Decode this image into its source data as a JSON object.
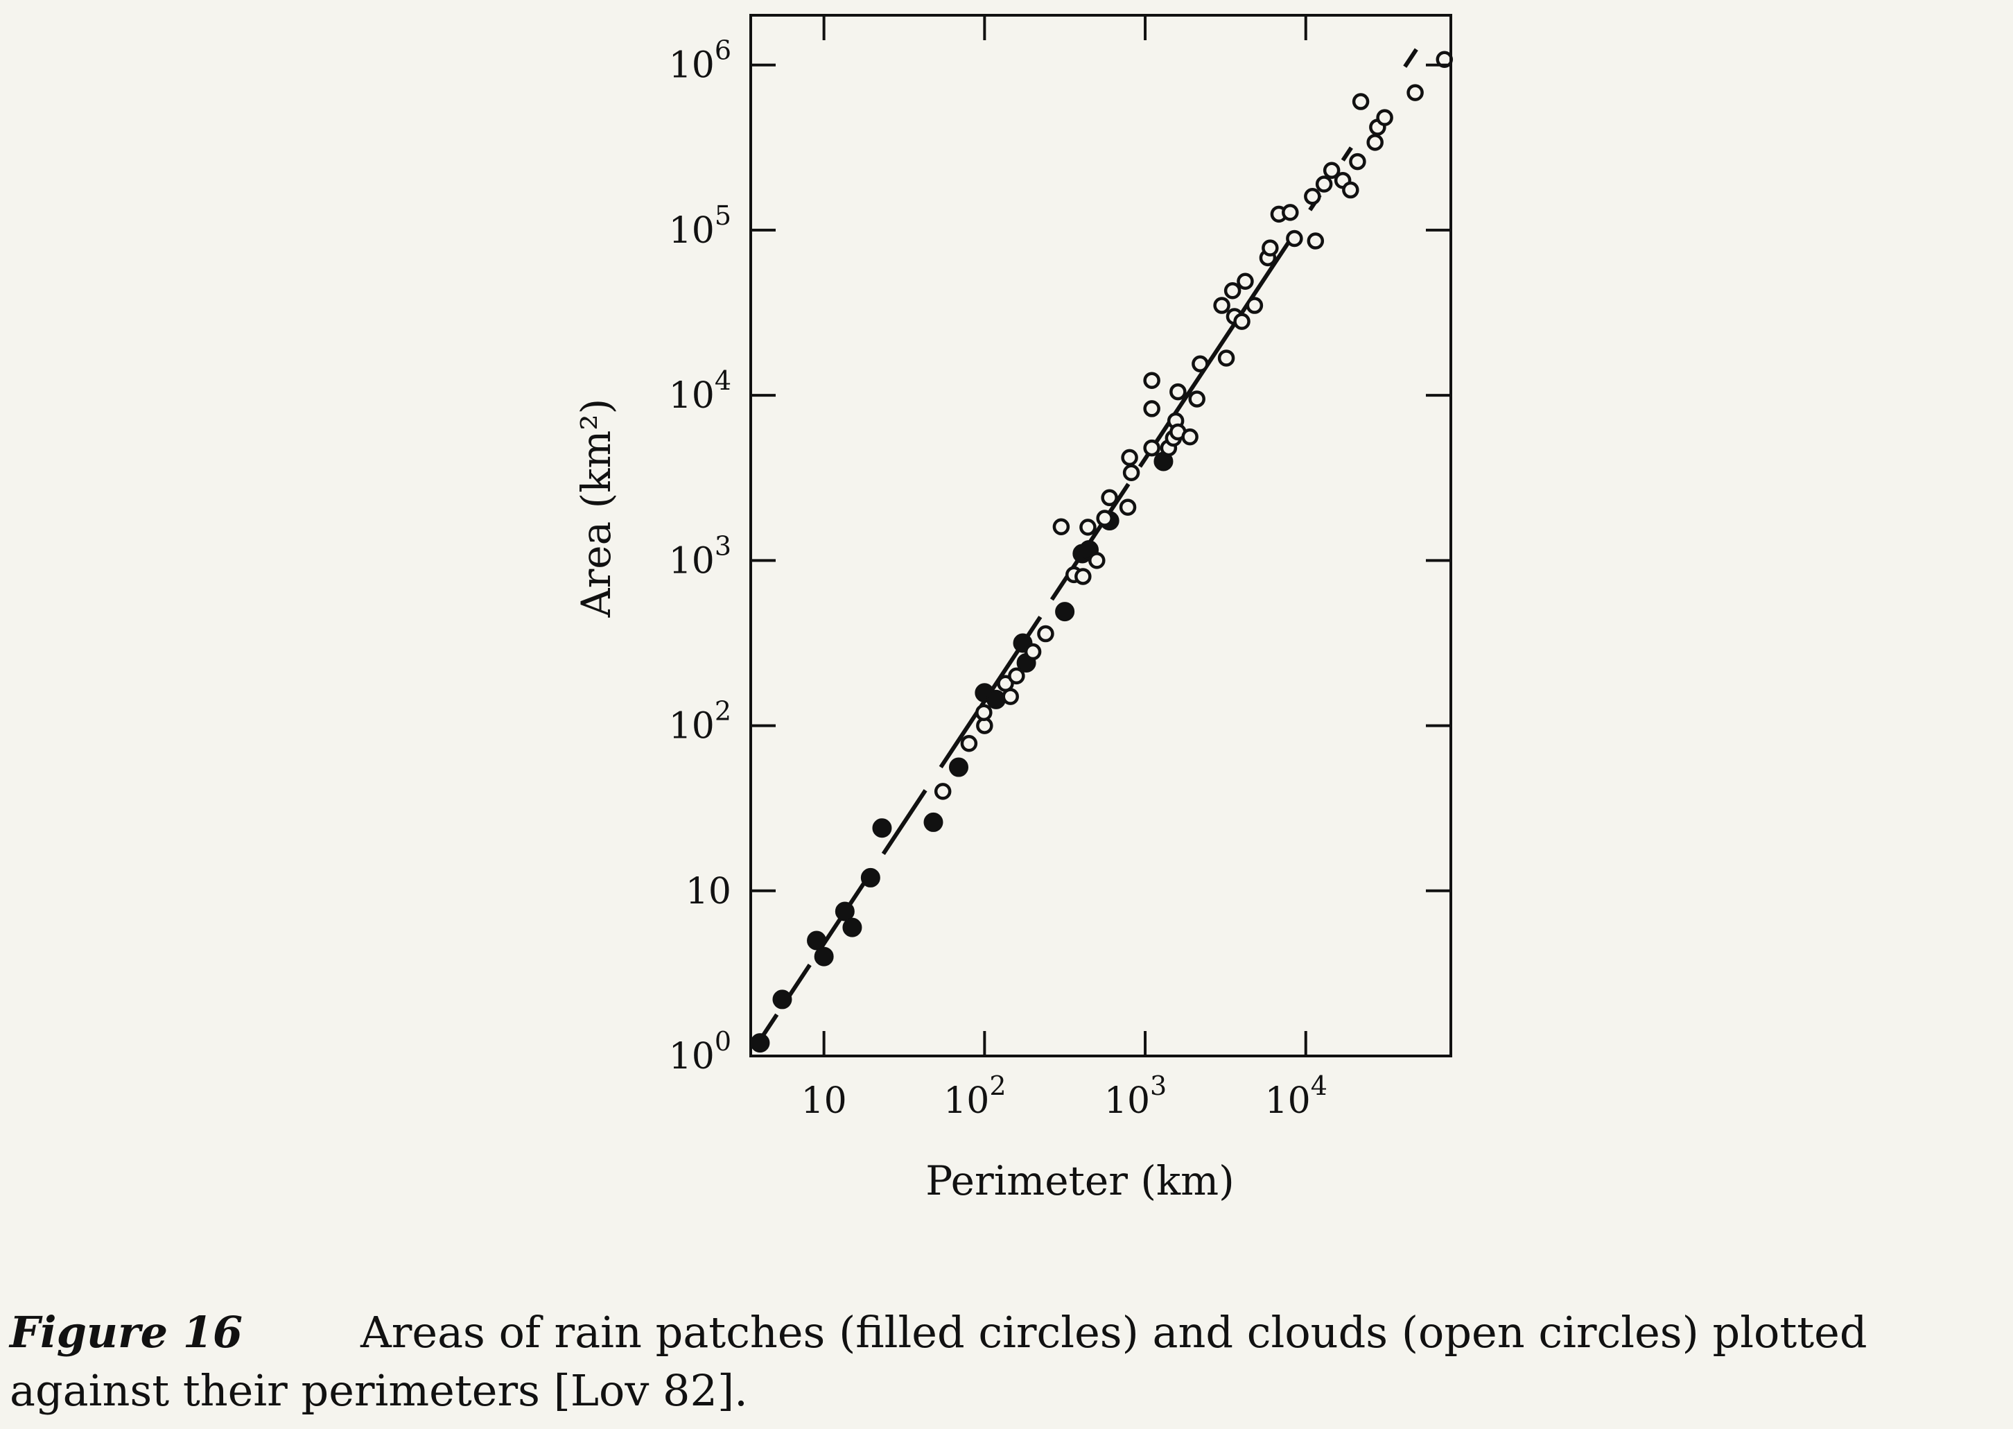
{
  "chart_data": {
    "type": "scatter",
    "xlabel": "Perimeter (km)",
    "ylabel": "Area (km²)",
    "x_scale": "log",
    "y_scale": "log",
    "xlim": [
      3.5,
      80000
    ],
    "ylim": [
      1,
      2000000
    ],
    "x_ticks": [
      {
        "value": 10,
        "label": "10"
      },
      {
        "value": 100,
        "label": "10",
        "exp": "2"
      },
      {
        "value": 1000,
        "label": "10",
        "exp": "3"
      },
      {
        "value": 10000,
        "label": "10",
        "exp": "4"
      }
    ],
    "y_ticks": [
      {
        "value": 1,
        "label": "10",
        "exp": "0"
      },
      {
        "value": 10,
        "label": "10"
      },
      {
        "value": 100,
        "label": "10",
        "exp": "2"
      },
      {
        "value": 1000,
        "label": "10",
        "exp": "3"
      },
      {
        "value": 10000,
        "label": "10",
        "exp": "4"
      },
      {
        "value": 100000,
        "label": "10",
        "exp": "5"
      },
      {
        "value": 1000000,
        "label": "10",
        "exp": "6"
      }
    ],
    "grid": false,
    "series": [
      {
        "marker": "filled-circle",
        "points": [
          [
            4,
            1.2
          ],
          [
            5.5,
            2.2
          ],
          [
            9,
            5
          ],
          [
            10,
            4
          ],
          [
            13.5,
            7.5
          ],
          [
            15,
            6
          ],
          [
            19.5,
            12
          ],
          [
            23,
            24
          ],
          [
            48,
            26
          ],
          [
            69,
            56
          ],
          [
            100,
            158
          ],
          [
            118,
            144
          ],
          [
            173,
            316
          ],
          [
            182,
            240
          ],
          [
            316,
            490
          ],
          [
            406,
            1100
          ],
          [
            447,
            1160
          ],
          [
            600,
            1740
          ],
          [
            1300,
            3980
          ]
        ]
      },
      {
        "marker": "open-circle",
        "points": [
          [
            55,
            40
          ],
          [
            80,
            78
          ],
          [
            100,
            100
          ],
          [
            99,
            120
          ],
          [
            135,
            180
          ],
          [
            145,
            150
          ],
          [
            158,
            200
          ],
          [
            200,
            280
          ],
          [
            240,
            360
          ],
          [
            300,
            1600
          ],
          [
            360,
            820
          ],
          [
            410,
            800
          ],
          [
            440,
            1590
          ],
          [
            500,
            1000
          ],
          [
            560,
            1800
          ],
          [
            600,
            2400
          ],
          [
            780,
            2100
          ],
          [
            800,
            4200
          ],
          [
            820,
            3400
          ],
          [
            1100,
            4800
          ],
          [
            1100,
            8300
          ],
          [
            1100,
            12300
          ],
          [
            1400,
            4800
          ],
          [
            1500,
            5500
          ],
          [
            1550,
            7000
          ],
          [
            1600,
            6000
          ],
          [
            1600,
            10500
          ],
          [
            1900,
            5600
          ],
          [
            2100,
            9500
          ],
          [
            2200,
            15500
          ],
          [
            3000,
            35000
          ],
          [
            3200,
            16800
          ],
          [
            3500,
            43000
          ],
          [
            3600,
            30000
          ],
          [
            4000,
            28000
          ],
          [
            4200,
            49000
          ],
          [
            4800,
            35000
          ],
          [
            5800,
            68000
          ],
          [
            6000,
            78000
          ],
          [
            6800,
            125000
          ],
          [
            8000,
            128000
          ],
          [
            8500,
            89000
          ],
          [
            11000,
            160000
          ],
          [
            11500,
            86000
          ],
          [
            13000,
            190000
          ],
          [
            14500,
            230000
          ],
          [
            17000,
            200000
          ],
          [
            19000,
            175000
          ],
          [
            21000,
            260000
          ],
          [
            22000,
            600000
          ],
          [
            27000,
            340000
          ],
          [
            28000,
            420000
          ],
          [
            31000,
            480000
          ],
          [
            48000,
            680000
          ],
          [
            73000,
            1080000
          ]
        ]
      }
    ],
    "fit_line": {
      "style": "dashed-solid",
      "points": [
        [
          4,
          1.25
        ],
        [
          57000,
          1560000
        ]
      ]
    }
  },
  "caption": {
    "label": "Figure 16",
    "text": "Areas of rain patches (filled circles) and clouds (open circles) plotted against their perimeters [Lov 82]."
  }
}
